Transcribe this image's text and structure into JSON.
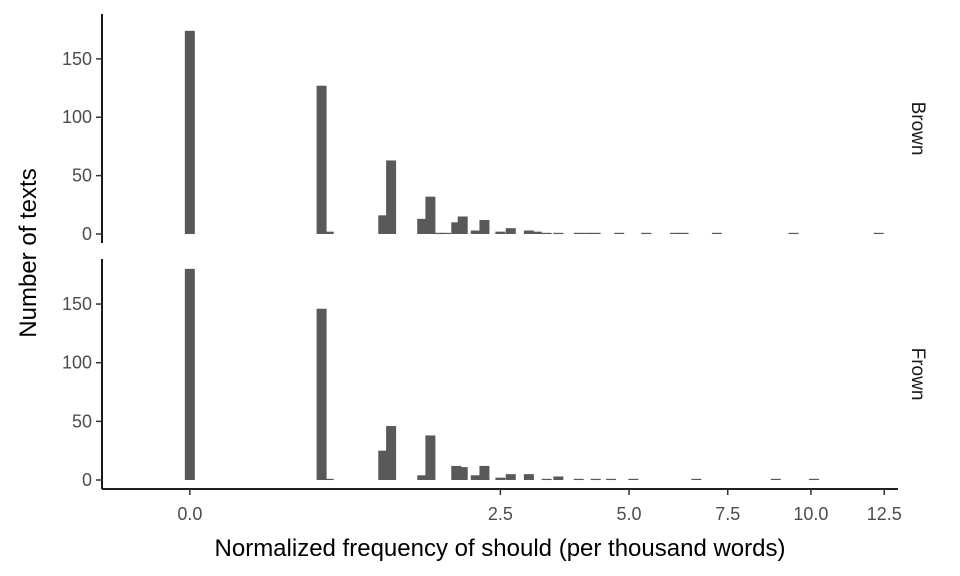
{
  "chart_data": {
    "type": "bar",
    "subtype": "faceted histogram",
    "xlabel": "Normalized frequency of should (per thousand words)",
    "ylabel": "Number of texts",
    "x_scale": "sqrt",
    "xlim": [
      -0.2,
      13.0
    ],
    "x_ticks": [
      0,
      2.5,
      5,
      7.5,
      10,
      12.5
    ],
    "x_tick_labels": [
      "0.0",
      "2.5",
      "5.0",
      "7.5",
      "10.0",
      "12.5"
    ],
    "y_ticks": [
      0,
      50,
      100,
      150
    ],
    "y_tick_labels": [
      "0",
      "50",
      "100",
      "150"
    ],
    "grid": false,
    "legend": "none",
    "bar_color": "#595959",
    "facet_position": "right",
    "facets": [
      {
        "label": "Brown",
        "ylim": [
          0,
          185
        ],
        "bars": [
          {
            "x": 0,
            "y": 174
          },
          {
            "x": 0.45,
            "y": 127
          },
          {
            "x": 0.5,
            "y": 2
          },
          {
            "x": 0.97,
            "y": 16
          },
          {
            "x": 1.05,
            "y": 63
          },
          {
            "x": 1.4,
            "y": 13
          },
          {
            "x": 1.5,
            "y": 32
          },
          {
            "x": 1.6,
            "y": 1
          },
          {
            "x": 1.7,
            "y": 1
          },
          {
            "x": 1.84,
            "y": 10
          },
          {
            "x": 1.93,
            "y": 15
          },
          {
            "x": 2.12,
            "y": 3
          },
          {
            "x": 2.25,
            "y": 12
          },
          {
            "x": 2.5,
            "y": 2
          },
          {
            "x": 2.67,
            "y": 5
          },
          {
            "x": 2.98,
            "y": 3
          },
          {
            "x": 3.12,
            "y": 2
          },
          {
            "x": 3.3,
            "y": 1
          },
          {
            "x": 3.52,
            "y": 1
          },
          {
            "x": 3.92,
            "y": 1
          },
          {
            "x": 4.1,
            "y": 1
          },
          {
            "x": 4.27,
            "y": 1
          },
          {
            "x": 4.78,
            "y": 1
          },
          {
            "x": 5.4,
            "y": 1
          },
          {
            "x": 6.1,
            "y": 1
          },
          {
            "x": 6.32,
            "y": 1
          },
          {
            "x": 7.2,
            "y": 1
          },
          {
            "x": 9.45,
            "y": 1
          },
          {
            "x": 12.3,
            "y": 1
          }
        ]
      },
      {
        "label": "Frown",
        "ylim": [
          0,
          185
        ],
        "bars": [
          {
            "x": 0,
            "y": 180
          },
          {
            "x": 0.45,
            "y": 146
          },
          {
            "x": 0.5,
            "y": 1
          },
          {
            "x": 0.97,
            "y": 25
          },
          {
            "x": 1.05,
            "y": 46
          },
          {
            "x": 1.4,
            "y": 4
          },
          {
            "x": 1.5,
            "y": 38
          },
          {
            "x": 1.84,
            "y": 12
          },
          {
            "x": 1.93,
            "y": 11
          },
          {
            "x": 2.12,
            "y": 4
          },
          {
            "x": 2.25,
            "y": 12
          },
          {
            "x": 2.5,
            "y": 2
          },
          {
            "x": 2.67,
            "y": 5
          },
          {
            "x": 2.98,
            "y": 5
          },
          {
            "x": 3.3,
            "y": 1
          },
          {
            "x": 3.52,
            "y": 3
          },
          {
            "x": 3.92,
            "y": 1
          },
          {
            "x": 4.27,
            "y": 1
          },
          {
            "x": 4.6,
            "y": 1
          },
          {
            "x": 5.1,
            "y": 1
          },
          {
            "x": 6.65,
            "y": 1
          },
          {
            "x": 8.9,
            "y": 1
          },
          {
            "x": 10.1,
            "y": 1
          }
        ]
      }
    ]
  }
}
